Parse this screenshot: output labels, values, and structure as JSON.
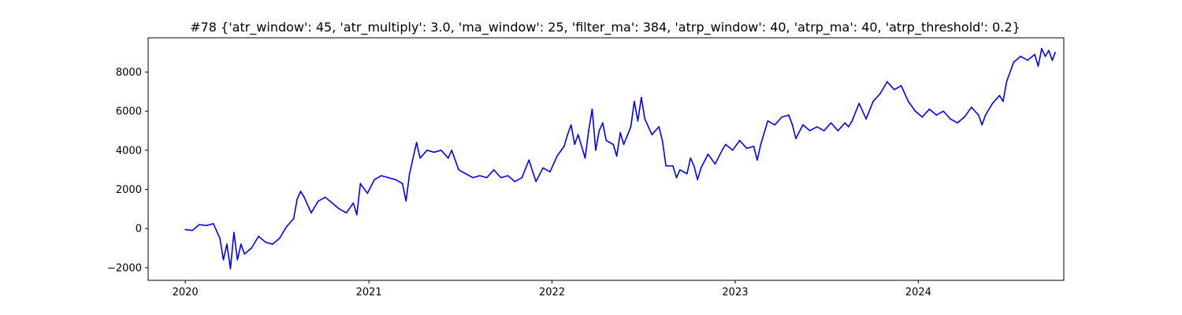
{
  "chart_data": {
    "type": "line",
    "title": "#78 {'atr_window': 45, 'atr_multiply': 3.0, 'ma_window': 25, 'filter_ma': 384, 'atrp_window': 40, 'atrp_ma': 40, 'atrp_threshold': 0.2}",
    "xlabel": "",
    "ylabel": "",
    "grid": false,
    "legend": "none",
    "x_axis": {
      "type": "date",
      "range": [
        "2019-10-19",
        "2024-10-17"
      ],
      "ticks": [
        "2020-01-01",
        "2021-01-01",
        "2022-01-01",
        "2023-01-01",
        "2024-01-01"
      ],
      "tick_labels": [
        "2020",
        "2021",
        "2022",
        "2023",
        "2024"
      ]
    },
    "y_axis": {
      "range": [
        -2650,
        9750
      ],
      "ticks": [
        -2000,
        0,
        2000,
        4000,
        6000,
        8000
      ],
      "tick_labels": [
        "−2000",
        "0",
        "2000",
        "4000",
        "6000",
        "8000"
      ]
    },
    "series": [
      {
        "color": "#0000ff",
        "points": [
          [
            "2020-01-01",
            -50
          ],
          [
            "2020-01-15",
            -100
          ],
          [
            "2020-01-29",
            200
          ],
          [
            "2020-02-12",
            150
          ],
          [
            "2020-02-26",
            250
          ],
          [
            "2020-03-10",
            -500
          ],
          [
            "2020-03-17",
            -1600
          ],
          [
            "2020-03-24",
            -800
          ],
          [
            "2020-03-31",
            -2050
          ],
          [
            "2020-04-07",
            -200
          ],
          [
            "2020-04-14",
            -1600
          ],
          [
            "2020-04-21",
            -800
          ],
          [
            "2020-04-28",
            -1300
          ],
          [
            "2020-05-12",
            -1000
          ],
          [
            "2020-05-26",
            -400
          ],
          [
            "2020-06-09",
            -700
          ],
          [
            "2020-06-23",
            -800
          ],
          [
            "2020-07-07",
            -500
          ],
          [
            "2020-07-21",
            100
          ],
          [
            "2020-08-04",
            500
          ],
          [
            "2020-08-11",
            1500
          ],
          [
            "2020-08-18",
            1900
          ],
          [
            "2020-08-25",
            1600
          ],
          [
            "2020-09-08",
            800
          ],
          [
            "2020-09-22",
            1400
          ],
          [
            "2020-10-06",
            1600
          ],
          [
            "2020-10-20",
            1300
          ],
          [
            "2020-11-03",
            1000
          ],
          [
            "2020-11-17",
            800
          ],
          [
            "2020-12-01",
            1300
          ],
          [
            "2020-12-08",
            700
          ],
          [
            "2020-12-15",
            2300
          ],
          [
            "2020-12-29",
            1800
          ],
          [
            "2021-01-12",
            2500
          ],
          [
            "2021-01-26",
            2700
          ],
          [
            "2021-02-09",
            2600
          ],
          [
            "2021-02-23",
            2500
          ],
          [
            "2021-03-09",
            2300
          ],
          [
            "2021-03-16",
            1400
          ],
          [
            "2021-03-23",
            2800
          ],
          [
            "2021-04-06",
            4400
          ],
          [
            "2021-04-13",
            3600
          ],
          [
            "2021-04-27",
            4000
          ],
          [
            "2021-05-11",
            3900
          ],
          [
            "2021-05-25",
            4000
          ],
          [
            "2021-06-08",
            3600
          ],
          [
            "2021-06-15",
            4000
          ],
          [
            "2021-06-29",
            3000
          ],
          [
            "2021-07-13",
            2800
          ],
          [
            "2021-07-27",
            2600
          ],
          [
            "2021-08-10",
            2700
          ],
          [
            "2021-08-24",
            2600
          ],
          [
            "2021-09-07",
            3000
          ],
          [
            "2021-09-21",
            2600
          ],
          [
            "2021-10-05",
            2700
          ],
          [
            "2021-10-19",
            2400
          ],
          [
            "2021-11-02",
            2600
          ],
          [
            "2021-11-16",
            3500
          ],
          [
            "2021-11-30",
            2400
          ],
          [
            "2021-12-14",
            3100
          ],
          [
            "2021-12-28",
            2900
          ],
          [
            "2022-01-11",
            3700
          ],
          [
            "2022-01-25",
            4200
          ],
          [
            "2022-02-01",
            4800
          ],
          [
            "2022-02-08",
            5300
          ],
          [
            "2022-02-15",
            4300
          ],
          [
            "2022-02-22",
            4800
          ],
          [
            "2022-03-08",
            3600
          ],
          [
            "2022-03-15",
            5000
          ],
          [
            "2022-03-22",
            6100
          ],
          [
            "2022-03-29",
            4000
          ],
          [
            "2022-04-05",
            5000
          ],
          [
            "2022-04-12",
            5400
          ],
          [
            "2022-04-19",
            4500
          ],
          [
            "2022-05-03",
            4300
          ],
          [
            "2022-05-10",
            3700
          ],
          [
            "2022-05-17",
            4900
          ],
          [
            "2022-05-24",
            4300
          ],
          [
            "2022-06-07",
            5200
          ],
          [
            "2022-06-14",
            6500
          ],
          [
            "2022-06-21",
            5500
          ],
          [
            "2022-06-28",
            6700
          ],
          [
            "2022-07-05",
            5600
          ],
          [
            "2022-07-19",
            4800
          ],
          [
            "2022-08-02",
            5200
          ],
          [
            "2022-08-09",
            4500
          ],
          [
            "2022-08-16",
            3200
          ],
          [
            "2022-08-30",
            3200
          ],
          [
            "2022-09-06",
            2600
          ],
          [
            "2022-09-13",
            3000
          ],
          [
            "2022-09-27",
            2800
          ],
          [
            "2022-10-04",
            3600
          ],
          [
            "2022-10-11",
            3200
          ],
          [
            "2022-10-18",
            2500
          ],
          [
            "2022-10-25",
            3100
          ],
          [
            "2022-11-08",
            3800
          ],
          [
            "2022-11-22",
            3300
          ],
          [
            "2022-12-06",
            4000
          ],
          [
            "2022-12-13",
            4300
          ],
          [
            "2022-12-27",
            4000
          ],
          [
            "2023-01-10",
            4500
          ],
          [
            "2023-01-24",
            4100
          ],
          [
            "2023-02-07",
            4200
          ],
          [
            "2023-02-14",
            3500
          ],
          [
            "2023-02-21",
            4300
          ],
          [
            "2023-03-07",
            5500
          ],
          [
            "2023-03-21",
            5300
          ],
          [
            "2023-04-04",
            5700
          ],
          [
            "2023-04-18",
            5800
          ],
          [
            "2023-04-25",
            5300
          ],
          [
            "2023-05-02",
            4600
          ],
          [
            "2023-05-16",
            5300
          ],
          [
            "2023-05-30",
            5000
          ],
          [
            "2023-06-13",
            5200
          ],
          [
            "2023-06-27",
            5000
          ],
          [
            "2023-07-11",
            5400
          ],
          [
            "2023-07-25",
            5000
          ],
          [
            "2023-08-08",
            5400
          ],
          [
            "2023-08-15",
            5200
          ],
          [
            "2023-08-22",
            5500
          ],
          [
            "2023-09-05",
            6400
          ],
          [
            "2023-09-19",
            5600
          ],
          [
            "2023-10-03",
            6500
          ],
          [
            "2023-10-17",
            6900
          ],
          [
            "2023-10-31",
            7500
          ],
          [
            "2023-11-14",
            7100
          ],
          [
            "2023-11-28",
            7300
          ],
          [
            "2023-12-12",
            6500
          ],
          [
            "2023-12-26",
            6000
          ],
          [
            "2024-01-09",
            5700
          ],
          [
            "2024-01-23",
            6100
          ],
          [
            "2024-02-06",
            5800
          ],
          [
            "2024-02-20",
            6000
          ],
          [
            "2024-03-05",
            5600
          ],
          [
            "2024-03-19",
            5400
          ],
          [
            "2024-04-02",
            5700
          ],
          [
            "2024-04-16",
            6200
          ],
          [
            "2024-04-30",
            5800
          ],
          [
            "2024-05-07",
            5300
          ],
          [
            "2024-05-14",
            5800
          ],
          [
            "2024-05-28",
            6400
          ],
          [
            "2024-06-11",
            6800
          ],
          [
            "2024-06-18",
            6500
          ],
          [
            "2024-06-25",
            7500
          ],
          [
            "2024-07-09",
            8500
          ],
          [
            "2024-07-23",
            8800
          ],
          [
            "2024-08-06",
            8600
          ],
          [
            "2024-08-20",
            8900
          ],
          [
            "2024-08-27",
            8300
          ],
          [
            "2024-09-03",
            9200
          ],
          [
            "2024-09-10",
            8800
          ],
          [
            "2024-09-17",
            9100
          ],
          [
            "2024-09-24",
            8600
          ],
          [
            "2024-09-30",
            9000
          ]
        ]
      }
    ]
  }
}
